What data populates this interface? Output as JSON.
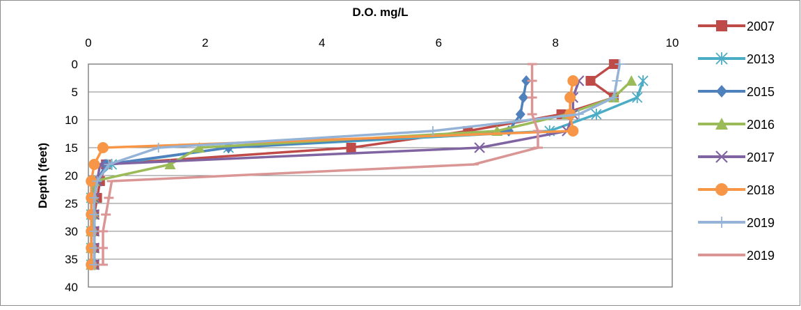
{
  "chart_data": {
    "type": "line",
    "title": "",
    "xlabel": "D.O. mg/L",
    "ylabel": "Depth (feet)",
    "xlim": [
      0,
      10
    ],
    "ylim": [
      0,
      40
    ],
    "x_ticks": [
      "0",
      "2",
      "4",
      "6",
      "8",
      "10"
    ],
    "y_ticks": [
      "0",
      "5",
      "10",
      "15",
      "20",
      "25",
      "30",
      "35",
      "40"
    ],
    "y_reversed": true,
    "x_axis_position": "top",
    "grid": "horizontal",
    "legend_position": "right",
    "series": [
      {
        "name": "2007",
        "color": "#be4b48",
        "marker": "square",
        "points": [
          [
            9.0,
            0
          ],
          [
            8.6,
            3
          ],
          [
            9.0,
            6
          ],
          [
            8.1,
            9
          ],
          [
            6.5,
            12
          ],
          [
            4.5,
            15
          ],
          [
            0.3,
            18
          ],
          [
            0.2,
            21
          ],
          [
            0.15,
            24
          ],
          [
            0.1,
            27
          ],
          [
            0.1,
            30
          ],
          [
            0.1,
            33
          ],
          [
            0.1,
            36
          ]
        ]
      },
      {
        "name": "2013",
        "color": "#4bacc6",
        "marker": "asterisk",
        "points": [
          [
            9.5,
            3
          ],
          [
            9.4,
            6
          ],
          [
            8.7,
            9
          ],
          [
            7.9,
            12
          ],
          [
            2.4,
            15
          ],
          [
            0.4,
            18
          ],
          [
            0.1,
            21
          ],
          [
            0.05,
            24
          ],
          [
            0.05,
            27
          ],
          [
            0.05,
            30
          ],
          [
            0.05,
            33
          ],
          [
            0.05,
            36
          ]
        ]
      },
      {
        "name": "2015",
        "color": "#4f81bd",
        "marker": "diamond",
        "points": [
          [
            7.5,
            3
          ],
          [
            7.45,
            6
          ],
          [
            7.4,
            9
          ],
          [
            7.2,
            12
          ],
          [
            2.4,
            15
          ],
          [
            0.3,
            18
          ],
          [
            0.15,
            21
          ],
          [
            0.1,
            24
          ],
          [
            0.1,
            27
          ],
          [
            0.1,
            30
          ],
          [
            0.1,
            33
          ],
          [
            0.1,
            36
          ]
        ]
      },
      {
        "name": "2016",
        "color": "#9bbb59",
        "marker": "triangle",
        "points": [
          [
            9.3,
            3
          ],
          [
            9.0,
            6
          ],
          [
            8.2,
            9
          ],
          [
            7.0,
            12
          ],
          [
            1.9,
            15
          ],
          [
            1.4,
            18
          ],
          [
            0.1,
            21
          ],
          [
            0.1,
            24
          ],
          [
            0.1,
            27
          ],
          [
            0.05,
            30
          ],
          [
            0.05,
            33
          ],
          [
            0.05,
            36
          ]
        ]
      },
      {
        "name": "2017",
        "color": "#8064a2",
        "marker": "x",
        "points": [
          [
            8.4,
            3
          ],
          [
            8.3,
            6
          ],
          [
            8.3,
            9
          ],
          [
            8.2,
            12
          ],
          [
            6.7,
            15
          ],
          [
            0.2,
            18
          ],
          [
            0.15,
            21
          ],
          [
            0.1,
            24
          ],
          [
            0.1,
            27
          ],
          [
            0.1,
            30
          ],
          [
            0.1,
            33
          ],
          [
            0.1,
            36
          ]
        ]
      },
      {
        "name": "2018",
        "color": "#f79646",
        "marker": "circle",
        "points": [
          [
            8.3,
            3
          ],
          [
            8.25,
            6
          ],
          [
            8.25,
            9
          ],
          [
            8.3,
            12
          ],
          [
            0.25,
            15
          ],
          [
            0.1,
            18
          ],
          [
            0.05,
            21
          ],
          [
            0.05,
            24
          ],
          [
            0.05,
            27
          ],
          [
            0.05,
            30
          ],
          [
            0.05,
            33
          ],
          [
            0.05,
            36
          ]
        ]
      },
      {
        "name": "2019",
        "color": "#95b3d7",
        "marker": "plus",
        "points": [
          [
            9.1,
            0
          ],
          [
            9.05,
            3
          ],
          [
            9.0,
            6
          ],
          [
            8.4,
            9
          ],
          [
            5.9,
            12
          ],
          [
            1.2,
            15
          ],
          [
            0.35,
            18
          ],
          [
            0.15,
            21
          ],
          [
            0.1,
            24
          ],
          [
            0.1,
            27
          ],
          [
            0.1,
            30
          ],
          [
            0.1,
            33
          ],
          [
            0.1,
            36
          ]
        ]
      },
      {
        "name": "2019",
        "color": "#d99694",
        "marker": "dash",
        "points": [
          [
            7.6,
            0
          ],
          [
            7.6,
            3
          ],
          [
            7.6,
            6
          ],
          [
            7.6,
            9
          ],
          [
            7.7,
            12
          ],
          [
            7.7,
            15
          ],
          [
            6.6,
            18
          ],
          [
            0.4,
            21
          ],
          [
            0.35,
            24
          ],
          [
            0.3,
            27
          ],
          [
            0.25,
            30
          ],
          [
            0.25,
            33
          ],
          [
            0.25,
            36
          ]
        ]
      }
    ]
  }
}
